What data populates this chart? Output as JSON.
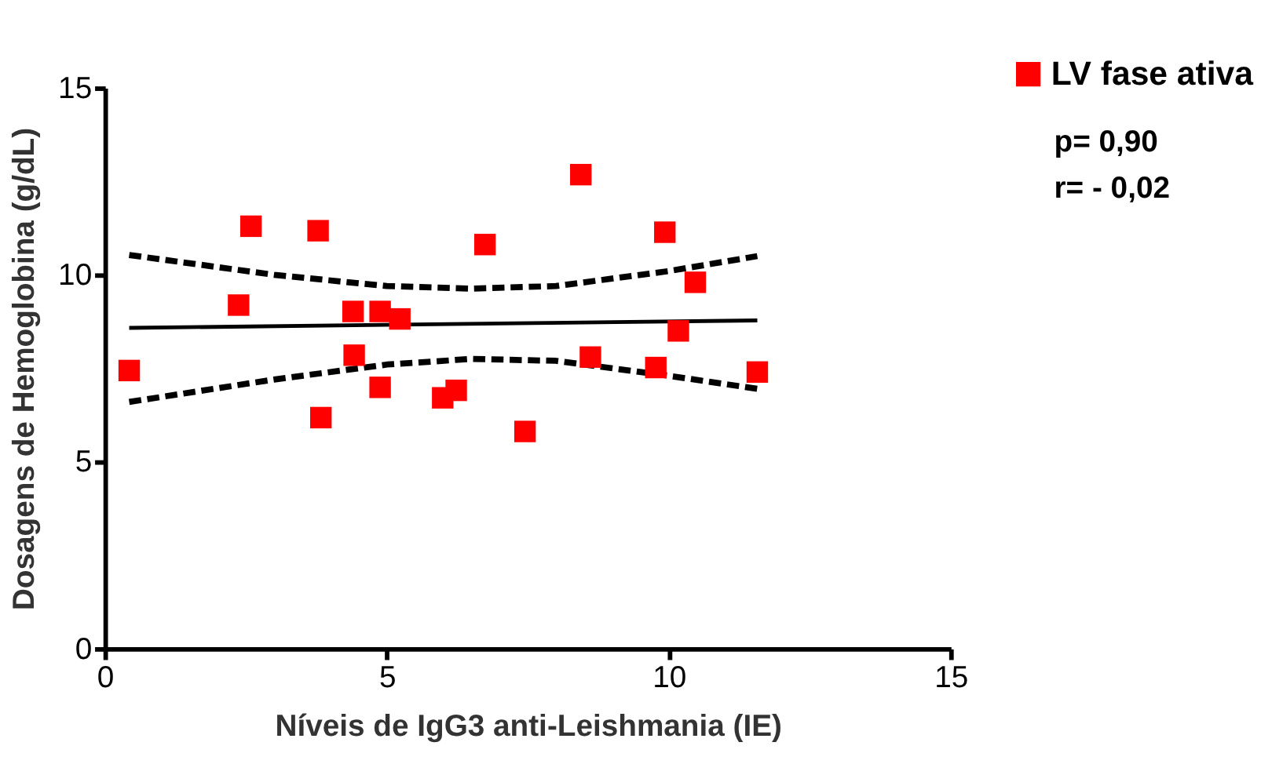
{
  "chart_data": {
    "type": "scatter",
    "xlabel": "Níveis de IgG3 anti-Leishmania (IE)",
    "ylabel": "Dosagens de Hemoglobina (g/dL)",
    "xlim": [
      0,
      15
    ],
    "ylim": [
      0,
      15
    ],
    "xticks": [
      0,
      5,
      10,
      15
    ],
    "yticks": [
      0,
      5,
      10,
      15
    ],
    "grid": false,
    "legend": "top right",
    "marker": "square",
    "annotations": [
      "p= 0,90",
      "r= - 0,02"
    ],
    "series": [
      {
        "name": "LV fase ativa",
        "color": "#ff0000",
        "x": [
          0.43,
          2.37,
          2.59,
          3.78,
          3.83,
          4.4,
          4.42,
          4.88,
          4.88,
          5.23,
          5.99,
          6.23,
          6.74,
          7.45,
          8.44,
          8.61,
          9.77,
          9.93,
          10.17,
          10.47,
          11.57
        ],
        "values": [
          7.44,
          9.19,
          11.3,
          11.18,
          6.18,
          9.02,
          7.85,
          9.02,
          6.99,
          8.82,
          6.71,
          6.91,
          10.81,
          5.81,
          12.68,
          7.8,
          7.52,
          11.14,
          8.5,
          9.8,
          7.4
        ]
      },
      {
        "type": "line",
        "color": "#000000",
        "line_style": "solid",
        "marker": "none",
        "x": [
          0.43,
          11.57
        ],
        "values": [
          8.58,
          8.78
        ]
      },
      {
        "type": "line",
        "color": "#000000",
        "line_style": "dashed",
        "marker": "none",
        "x": [
          0.43,
          3,
          5,
          6.5,
          8,
          10,
          11.57
        ],
        "values": [
          10.53,
          10.0,
          9.7,
          9.63,
          9.7,
          10.1,
          10.5
        ]
      },
      {
        "type": "line",
        "color": "#000000",
        "line_style": "dashed",
        "marker": "none",
        "x": [
          0.43,
          3,
          5,
          6.5,
          8,
          10,
          11.57
        ],
        "values": [
          6.6,
          7.2,
          7.6,
          7.75,
          7.7,
          7.3,
          6.95
        ]
      }
    ]
  }
}
